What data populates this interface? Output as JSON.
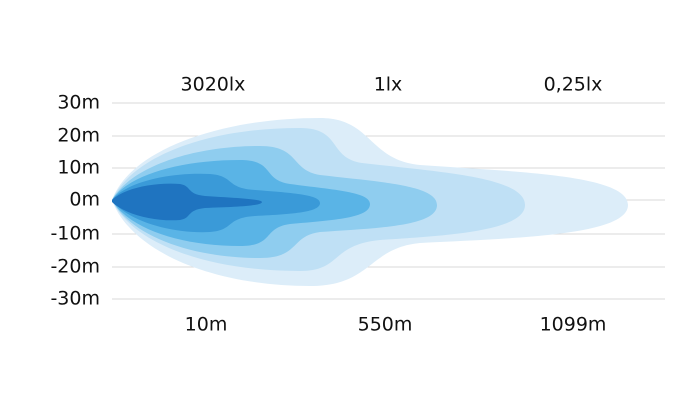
{
  "top_labels": [
    "3020lx",
    "1lx",
    "0,25lx"
  ],
  "y_labels": [
    "30m",
    "20m",
    "10m",
    "0m",
    "-10m",
    "-20m",
    "-30m"
  ],
  "bottom_labels": [
    "10m",
    "550m",
    "1099m"
  ]
}
